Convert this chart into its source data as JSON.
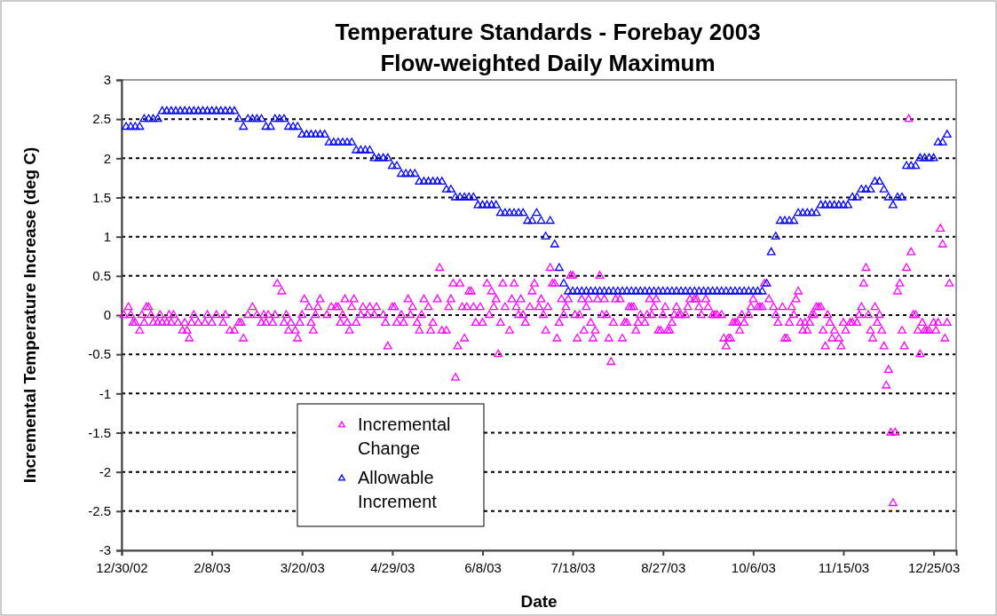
{
  "chart_data": {
    "type": "scatter",
    "title": "Temperature Standards - Forebay 2003",
    "subtitle": "Flow-weighted Daily Maximum",
    "xlabel": "Date",
    "ylabel": "Incremental Temperature Increase (deg C)",
    "xlim": [
      "2002-12-30",
      "2004-01-04"
    ],
    "xticks": [
      {
        "value": "2002-12-30",
        "label": "12/30/02"
      },
      {
        "value": "2003-02-08",
        "label": "2/8/03"
      },
      {
        "value": "2003-03-20",
        "label": "3/20/03"
      },
      {
        "value": "2003-04-29",
        "label": "4/29/03"
      },
      {
        "value": "2003-06-08",
        "label": "6/8/03"
      },
      {
        "value": "2003-07-18",
        "label": "7/18/03"
      },
      {
        "value": "2003-08-27",
        "label": "8/27/03"
      },
      {
        "value": "2003-10-06",
        "label": "10/6/03"
      },
      {
        "value": "2003-11-15",
        "label": "11/15/03"
      },
      {
        "value": "2003-12-25",
        "label": "12/25/03"
      }
    ],
    "ylim": [
      -3,
      3
    ],
    "yticks": [
      -3,
      -2.5,
      -2,
      -1.5,
      -1,
      -0.5,
      0,
      0.5,
      1,
      1.5,
      2,
      2.5,
      3
    ],
    "grid": "y",
    "legend": "bottom left",
    "marker": "triangle",
    "series": [
      {
        "name": "Incremental Change",
        "color": "#ff00ff",
        "x": [
          "2002-12-31",
          "2003-01-02",
          "2003-01-03",
          "2003-01-04",
          "2003-01-05",
          "2003-01-07",
          "2003-01-08",
          "2003-01-09",
          "2003-01-10",
          "2003-01-11",
          "2003-01-12",
          "2003-01-13",
          "2003-01-15",
          "2003-01-16",
          "2003-01-17",
          "2003-01-19",
          "2003-01-20",
          "2003-01-21",
          "2003-01-22",
          "2003-01-24",
          "2003-01-26",
          "2003-01-27",
          "2003-01-28",
          "2003-01-29",
          "2003-01-30",
          "2003-01-31",
          "2003-02-02",
          "2003-02-05",
          "2003-02-06",
          "2003-02-08",
          "2003-02-10",
          "2003-02-13",
          "2003-02-14",
          "2003-02-16",
          "2003-02-18",
          "2003-02-20",
          "2003-02-21",
          "2003-02-22",
          "2003-02-24",
          "2003-02-26",
          "2003-02-28",
          "2003-03-02",
          "2003-03-03",
          "2003-03-04",
          "2003-03-05",
          "2003-03-07",
          "2003-03-08",
          "2003-03-09",
          "2003-03-11",
          "2003-03-12",
          "2003-03-13",
          "2003-03-14",
          "2003-03-15",
          "2003-03-17",
          "2003-03-18",
          "2003-03-19",
          "2003-03-20",
          "2003-03-21",
          "2003-03-23",
          "2003-03-24",
          "2003-03-25",
          "2003-03-26",
          "2003-03-27",
          "2003-03-28",
          "2003-03-31",
          "2003-04-02",
          "2003-04-04",
          "2003-04-05",
          "2003-04-06",
          "2003-04-07",
          "2003-04-08",
          "2003-04-09",
          "2003-04-10",
          "2003-04-11",
          "2003-04-12",
          "2003-04-13",
          "2003-04-15",
          "2003-04-16",
          "2003-04-18",
          "2003-04-19",
          "2003-04-21",
          "2003-04-22",
          "2003-04-25",
          "2003-04-26",
          "2003-04-27",
          "2003-04-29",
          "2003-04-30",
          "2003-05-01",
          "2003-05-03",
          "2003-05-04",
          "2003-05-06",
          "2003-05-07",
          "2003-05-08",
          "2003-05-10",
          "2003-05-11",
          "2003-05-12",
          "2003-05-13",
          "2003-05-15",
          "2003-05-16",
          "2003-05-17",
          "2003-05-19",
          "2003-05-20",
          "2003-05-21",
          "2003-05-23",
          "2003-05-24",
          "2003-05-25",
          "2003-05-26",
          "2003-05-27",
          "2003-05-28",
          "2003-05-29",
          "2003-05-30",
          "2003-05-31",
          "2003-06-01",
          "2003-06-02",
          "2003-06-03",
          "2003-06-04",
          "2003-06-05",
          "2003-06-07",
          "2003-06-08",
          "2003-06-10",
          "2003-06-11",
          "2003-06-12",
          "2003-06-13",
          "2003-06-14",
          "2003-06-15",
          "2003-06-16",
          "2003-06-17",
          "2003-06-18",
          "2003-06-20",
          "2003-06-21",
          "2003-06-22",
          "2003-06-23",
          "2003-06-24",
          "2003-06-25",
          "2003-06-26",
          "2003-06-27",
          "2003-06-29",
          "2003-06-30",
          "2003-07-01",
          "2003-07-03",
          "2003-07-04",
          "2003-07-05",
          "2003-07-06",
          "2003-07-07",
          "2003-07-08",
          "2003-07-09",
          "2003-07-10",
          "2003-07-11",
          "2003-07-12",
          "2003-07-13",
          "2003-07-14",
          "2003-07-15",
          "2003-07-16",
          "2003-07-17",
          "2003-07-18",
          "2003-07-19",
          "2003-07-20",
          "2003-07-21",
          "2003-07-22",
          "2003-07-23",
          "2003-07-24",
          "2003-07-25",
          "2003-07-26",
          "2003-07-27",
          "2003-07-28",
          "2003-07-29",
          "2003-07-30",
          "2003-07-31",
          "2003-08-01",
          "2003-08-02",
          "2003-08-03",
          "2003-08-04",
          "2003-08-05",
          "2003-08-06",
          "2003-08-08",
          "2003-08-09",
          "2003-08-10",
          "2003-08-11",
          "2003-08-12",
          "2003-08-13",
          "2003-08-14",
          "2003-08-15",
          "2003-08-16",
          "2003-08-17",
          "2003-08-19",
          "2003-08-20",
          "2003-08-21",
          "2003-08-22",
          "2003-08-23",
          "2003-08-24",
          "2003-08-25",
          "2003-08-26",
          "2003-08-27",
          "2003-08-28",
          "2003-08-29",
          "2003-08-30",
          "2003-08-31",
          "2003-09-01",
          "2003-09-02",
          "2003-09-03",
          "2003-09-04",
          "2003-09-06",
          "2003-09-07",
          "2003-09-08",
          "2003-09-10",
          "2003-09-11",
          "2003-09-12",
          "2003-09-13",
          "2003-09-15",
          "2003-09-16",
          "2003-09-18",
          "2003-09-19",
          "2003-09-20",
          "2003-09-22",
          "2003-09-23",
          "2003-09-24",
          "2003-09-25",
          "2003-09-26",
          "2003-09-27",
          "2003-09-28",
          "2003-09-29",
          "2003-09-30",
          "2003-10-01",
          "2003-10-02",
          "2003-10-04",
          "2003-10-05",
          "2003-10-06",
          "2003-10-08",
          "2003-10-09",
          "2003-10-10",
          "2003-10-11",
          "2003-10-13",
          "2003-10-15",
          "2003-10-16",
          "2003-10-17",
          "2003-10-19",
          "2003-10-20",
          "2003-10-21",
          "2003-10-22",
          "2003-10-23",
          "2003-10-24",
          "2003-10-25",
          "2003-10-26",
          "2003-10-27",
          "2003-10-28",
          "2003-10-29",
          "2003-10-30",
          "2003-10-31",
          "2003-11-01",
          "2003-11-02",
          "2003-11-03",
          "2003-11-04",
          "2003-11-05",
          "2003-11-06",
          "2003-11-07",
          "2003-11-08",
          "2003-11-09",
          "2003-11-10",
          "2003-11-11",
          "2003-11-13",
          "2003-11-14",
          "2003-11-15",
          "2003-11-16",
          "2003-11-18",
          "2003-11-19",
          "2003-11-21",
          "2003-11-22",
          "2003-11-23",
          "2003-11-24",
          "2003-11-25",
          "2003-11-26",
          "2003-11-27",
          "2003-11-28",
          "2003-11-29",
          "2003-11-30",
          "2003-12-01",
          "2003-12-02",
          "2003-12-03",
          "2003-12-04",
          "2003-12-05",
          "2003-12-06",
          "2003-12-07",
          "2003-12-08",
          "2003-12-09",
          "2003-12-10",
          "2003-12-11",
          "2003-12-12",
          "2003-12-13",
          "2003-12-14",
          "2003-12-15",
          "2003-12-16",
          "2003-12-17",
          "2003-12-18",
          "2003-12-19",
          "2003-12-20",
          "2003-12-21",
          "2003-12-22",
          "2003-12-23",
          "2003-12-25",
          "2003-12-26",
          "2003-12-27",
          "2003-12-28",
          "2003-12-29",
          "2003-12-30",
          "2003-12-31",
          "2004-01-01"
        ],
        "values": [
          0,
          0.1,
          0,
          -0.1,
          -0.1,
          -0.2,
          0,
          -0.1,
          0.1,
          0.1,
          0,
          -0.1,
          -0.1,
          0,
          -0.1,
          -0.1,
          0,
          -0.1,
          0,
          -0.1,
          -0.2,
          -0.1,
          -0.2,
          -0.3,
          -0.1,
          0,
          -0.1,
          -0.1,
          0,
          -0.1,
          0,
          -0.1,
          0,
          -0.2,
          -0.2,
          -0.1,
          -0.1,
          -0.3,
          0,
          0.1,
          0,
          -0.1,
          0,
          -0.1,
          0,
          -0.1,
          0,
          0.4,
          0.3,
          -0.1,
          0,
          -0.2,
          -0.1,
          -0.2,
          -0.3,
          -0.1,
          0,
          0.2,
          0.1,
          -0.1,
          -0.2,
          0,
          0.1,
          0.2,
          0,
          0.1,
          0.1,
          0.1,
          -0.1,
          0,
          0.2,
          -0.1,
          -0.2,
          0.1,
          0.2,
          -0.1,
          0,
          0.1,
          0,
          0.1,
          0,
          0.1,
          0,
          -0.1,
          -0.4,
          0.1,
          0.1,
          -0.1,
          0,
          -0.1,
          0.2,
          0,
          0.1,
          -0.1,
          -0.2,
          0,
          0.2,
          0.1,
          -0.2,
          -0.1,
          0.2,
          0.6,
          -0.2,
          -0.2,
          0.1,
          0.2,
          0.4,
          -0.8,
          -0.4,
          0.4,
          0.1,
          -0.3,
          0.1,
          0.3,
          0.3,
          0.1,
          -0.1,
          0.1,
          -0.1,
          0.4,
          0,
          0.3,
          0.1,
          0.2,
          -0.5,
          -0.1,
          0.4,
          0.1,
          -0.2,
          0.2,
          0.4,
          0.1,
          0,
          0.2,
          0,
          -0.1,
          0.1,
          0.3,
          0.4,
          0.1,
          0.2,
          0,
          -0.2,
          0.1,
          0.6,
          0.4,
          0.4,
          -0.3,
          -0.1,
          0.2,
          0,
          0.1,
          0.2,
          0.5,
          0.5,
          0,
          -0.3,
          0,
          0.2,
          -0.2,
          0.1,
          0.2,
          -0.1,
          -0.3,
          -0.2,
          0.2,
          0.5,
          0,
          0.2,
          0,
          -0.3,
          -0.6,
          -0.1,
          0.2,
          0.2,
          -0.3,
          -0.1,
          -0.1,
          0.1,
          0.1,
          0.1,
          -0.2,
          -0.1,
          0,
          -0.1,
          0,
          0.2,
          0,
          0.1,
          0.2,
          -0.2,
          -0.2,
          0,
          0.1,
          -0.2,
          -0.2,
          -0.1,
          0,
          0.1,
          0,
          0,
          0,
          0.1,
          0.2,
          0.2,
          0.2,
          0.1,
          0,
          0.2,
          0.1,
          0,
          0,
          0,
          0,
          -0.3,
          -0.4,
          -0.3,
          -0.3,
          -0.1,
          -0.1,
          -0.1,
          -0.2,
          0,
          -0.1,
          0,
          0.1,
          0.2,
          0.1,
          0.1,
          0.1,
          0.4,
          0.2,
          0.1,
          0,
          -0.1,
          0.1,
          -0.3,
          -0.3,
          -0.1,
          0.1,
          0,
          0.2,
          0.3,
          -0.1,
          -0.2,
          -0.1,
          -0.2,
          -0.1,
          0,
          0,
          0.1,
          0.1,
          0.1,
          -0.2,
          -0.4,
          0,
          -0.1,
          -0.3,
          -0.2,
          -0.3,
          -0.4,
          -0.1,
          -0.2,
          -0.1,
          -0.1,
          -0.1,
          0,
          0.1,
          0.4,
          0.6,
          0,
          -0.2,
          -0.3,
          0.1,
          -0.1,
          0,
          -0.2,
          -0.4,
          -0.9,
          -0.7,
          -1.5,
          -2.4,
          -1.5,
          0.3,
          0.4,
          -0.2,
          -0.4,
          0.6,
          2.5,
          0.8,
          0,
          0,
          -0.2,
          -0.5,
          -0.1,
          -0.2,
          -0.2,
          -0.2,
          -0.1,
          -0.2,
          -0.1,
          1.1,
          0.9,
          -0.3,
          -0.1,
          0.4
        ]
      },
      {
        "name": "Allowable Increment",
        "color": "#0000ff",
        "x": [
          "2003-01-01",
          "2003-01-03",
          "2003-01-05",
          "2003-01-07",
          "2003-01-09",
          "2003-01-11",
          "2003-01-13",
          "2003-01-15",
          "2003-01-17",
          "2003-01-19",
          "2003-01-21",
          "2003-01-23",
          "2003-01-25",
          "2003-01-27",
          "2003-01-29",
          "2003-01-31",
          "2003-02-02",
          "2003-02-04",
          "2003-02-06",
          "2003-02-08",
          "2003-02-10",
          "2003-02-12",
          "2003-02-14",
          "2003-02-16",
          "2003-02-18",
          "2003-02-20",
          "2003-02-22",
          "2003-02-24",
          "2003-02-26",
          "2003-02-28",
          "2003-03-02",
          "2003-03-04",
          "2003-03-06",
          "2003-03-08",
          "2003-03-10",
          "2003-03-12",
          "2003-03-14",
          "2003-03-16",
          "2003-03-18",
          "2003-03-20",
          "2003-03-22",
          "2003-03-24",
          "2003-03-26",
          "2003-03-28",
          "2003-03-30",
          "2003-04-01",
          "2003-04-03",
          "2003-04-05",
          "2003-04-07",
          "2003-04-09",
          "2003-04-11",
          "2003-04-13",
          "2003-04-15",
          "2003-04-17",
          "2003-04-19",
          "2003-04-21",
          "2003-04-23",
          "2003-04-25",
          "2003-04-27",
          "2003-04-29",
          "2003-05-01",
          "2003-05-03",
          "2003-05-05",
          "2003-05-07",
          "2003-05-09",
          "2003-05-11",
          "2003-05-13",
          "2003-05-15",
          "2003-05-17",
          "2003-05-19",
          "2003-05-21",
          "2003-05-23",
          "2003-05-25",
          "2003-05-27",
          "2003-05-29",
          "2003-05-31",
          "2003-06-02",
          "2003-06-04",
          "2003-06-06",
          "2003-06-08",
          "2003-06-10",
          "2003-06-12",
          "2003-06-14",
          "2003-06-16",
          "2003-06-18",
          "2003-06-20",
          "2003-06-22",
          "2003-06-24",
          "2003-06-26",
          "2003-06-28",
          "2003-06-30",
          "2003-07-02",
          "2003-07-04",
          "2003-07-06",
          "2003-07-08",
          "2003-07-10",
          "2003-07-12",
          "2003-07-14",
          "2003-07-16",
          "2003-07-18",
          "2003-07-20",
          "2003-07-22",
          "2003-07-24",
          "2003-07-26",
          "2003-07-28",
          "2003-07-30",
          "2003-08-01",
          "2003-08-03",
          "2003-08-05",
          "2003-08-07",
          "2003-08-09",
          "2003-08-11",
          "2003-08-13",
          "2003-08-15",
          "2003-08-17",
          "2003-08-19",
          "2003-08-21",
          "2003-08-23",
          "2003-08-25",
          "2003-08-27",
          "2003-08-29",
          "2003-08-31",
          "2003-09-02",
          "2003-09-04",
          "2003-09-06",
          "2003-09-08",
          "2003-09-10",
          "2003-09-12",
          "2003-09-14",
          "2003-09-16",
          "2003-09-18",
          "2003-09-20",
          "2003-09-22",
          "2003-09-24",
          "2003-09-26",
          "2003-09-28",
          "2003-09-30",
          "2003-10-02",
          "2003-10-04",
          "2003-10-06",
          "2003-10-08",
          "2003-10-10",
          "2003-10-12",
          "2003-10-14",
          "2003-10-16",
          "2003-10-18",
          "2003-10-20",
          "2003-10-22",
          "2003-10-24",
          "2003-10-26",
          "2003-10-28",
          "2003-10-30",
          "2003-11-01",
          "2003-11-03",
          "2003-11-05",
          "2003-11-07",
          "2003-11-09",
          "2003-11-11",
          "2003-11-13",
          "2003-11-15",
          "2003-11-17",
          "2003-11-19",
          "2003-11-21",
          "2003-11-23",
          "2003-11-25",
          "2003-11-27",
          "2003-11-29",
          "2003-12-01",
          "2003-12-03",
          "2003-12-05",
          "2003-12-07",
          "2003-12-09",
          "2003-12-11",
          "2003-12-13",
          "2003-12-15",
          "2003-12-17",
          "2003-12-19",
          "2003-12-21",
          "2003-12-23",
          "2003-12-25",
          "2003-12-27",
          "2003-12-29",
          "2003-12-31"
        ],
        "values": [
          2.4,
          2.4,
          2.4,
          2.4,
          2.5,
          2.5,
          2.5,
          2.5,
          2.6,
          2.6,
          2.6,
          2.6,
          2.6,
          2.6,
          2.6,
          2.6,
          2.6,
          2.6,
          2.6,
          2.6,
          2.6,
          2.6,
          2.6,
          2.6,
          2.6,
          2.5,
          2.4,
          2.5,
          2.5,
          2.5,
          2.5,
          2.4,
          2.4,
          2.5,
          2.5,
          2.5,
          2.4,
          2.4,
          2.4,
          2.3,
          2.3,
          2.3,
          2.3,
          2.3,
          2.3,
          2.2,
          2.2,
          2.2,
          2.2,
          2.2,
          2.2,
          2.1,
          2.1,
          2.1,
          2.1,
          2,
          2,
          2,
          2,
          1.9,
          1.9,
          1.8,
          1.8,
          1.8,
          1.8,
          1.7,
          1.7,
          1.7,
          1.7,
          1.7,
          1.7,
          1.6,
          1.6,
          1.5,
          1.5,
          1.5,
          1.5,
          1.5,
          1.4,
          1.4,
          1.4,
          1.4,
          1.4,
          1.3,
          1.3,
          1.3,
          1.3,
          1.3,
          1.3,
          1.2,
          1.2,
          1.3,
          1.2,
          1,
          1.2,
          0.9,
          0.6,
          0.4,
          0.3,
          0.3,
          0.3,
          0.3,
          0.3,
          0.3,
          0.3,
          0.3,
          0.3,
          0.3,
          0.3,
          0.3,
          0.3,
          0.3,
          0.3,
          0.3,
          0.3,
          0.3,
          0.3,
          0.3,
          0.3,
          0.3,
          0.3,
          0.3,
          0.3,
          0.3,
          0.3,
          0.3,
          0.3,
          0.3,
          0.3,
          0.3,
          0.3,
          0.3,
          0.3,
          0.3,
          0.3,
          0.3,
          0.3,
          0.3,
          0.3,
          0.3,
          0.3,
          0.3,
          0.4,
          0.8,
          1,
          1.2,
          1.2,
          1.2,
          1.2,
          1.3,
          1.3,
          1.3,
          1.3,
          1.3,
          1.4,
          1.4,
          1.4,
          1.4,
          1.4,
          1.4,
          1.4,
          1.5,
          1.5,
          1.6,
          1.6,
          1.6,
          1.7,
          1.7,
          1.6,
          1.5,
          1.4,
          1.5,
          1.5,
          1.9,
          1.9,
          1.9,
          2,
          2,
          2,
          2,
          2.2,
          2.2,
          2.3
        ]
      }
    ]
  }
}
